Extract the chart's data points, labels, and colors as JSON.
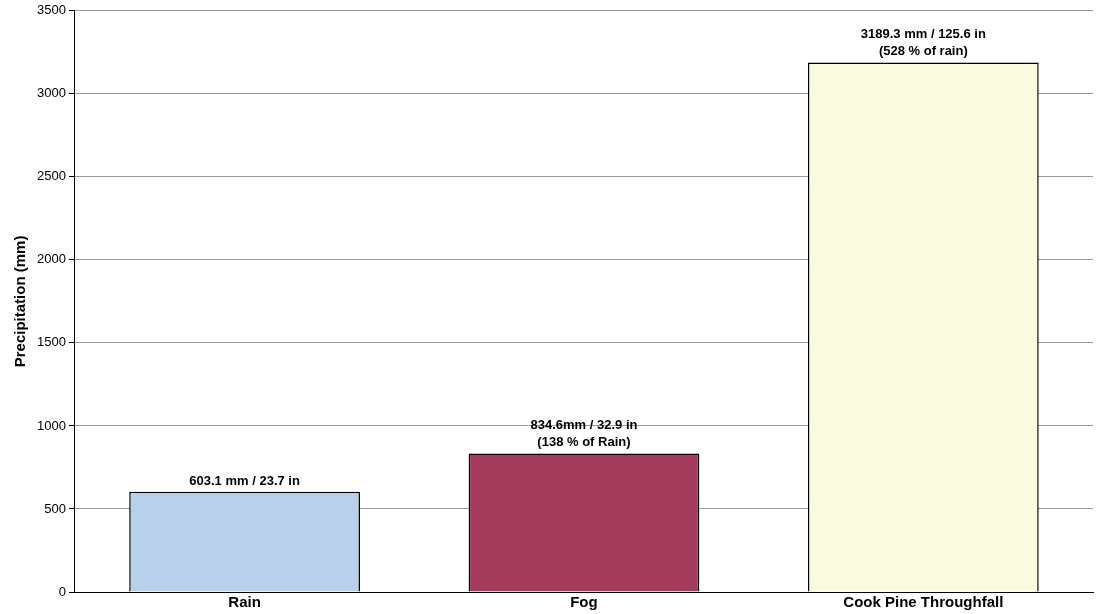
{
  "chart_data": {
    "type": "bar",
    "ylabel": "Precipitation (mm)",
    "categories": [
      "Rain",
      "Fog",
      "Cook Pine Throughfall"
    ],
    "values": [
      603.1,
      834.6,
      3189.3
    ],
    "colors": [
      "#b8d0ea",
      "#a23b5c",
      "#fbfbe2"
    ],
    "value_labels": [
      "603.1 mm / 23.7 in",
      "834.6mm / 32.9 in\n(138 % of Rain)",
      "3189.3 mm / 125.6 in\n(528 % of rain)"
    ],
    "ylim": [
      0,
      3500
    ],
    "yticks": [
      0,
      500,
      1000,
      1500,
      2000,
      2500,
      3000,
      3500
    ],
    "grid": "y",
    "legend": false
  }
}
